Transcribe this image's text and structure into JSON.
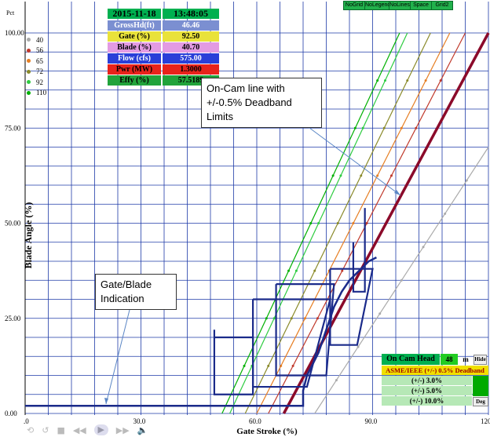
{
  "toolbar": {
    "buttons": [
      "NoGrid",
      "NoLegend",
      "NoLines",
      "Space",
      "Grid2"
    ]
  },
  "info": {
    "date": "2015-11-18",
    "time": "13:48:05",
    "rows": [
      {
        "label": "GrossHd(ft)",
        "value": "46.46",
        "label_bg": "#7b8fd1",
        "value_bg": "#7b8fd1",
        "color": "#fff"
      },
      {
        "label": "Gate (%)",
        "value": "92.50",
        "label_bg": "#e9e23a",
        "value_bg": "#e9e23a",
        "color": "#000"
      },
      {
        "label": "Blade (%)",
        "value": "40.70",
        "label_bg": "#e39be3",
        "value_bg": "#e39be3",
        "color": "#000"
      },
      {
        "label": "Flow (cfs)",
        "value": "575.00",
        "label_bg": "#2a3fd8",
        "value_bg": "#2a3fd8",
        "color": "#fff"
      },
      {
        "label": "Pwr (MW)",
        "value": "1.3000",
        "label_bg": "#e8231b",
        "value_bg": "#e8231b",
        "color": "#000"
      },
      {
        "label": "Effy (%)",
        "value": "57.5189",
        "label_bg": "#21a33b",
        "value_bg": "#21a33b",
        "color": "#000"
      }
    ]
  },
  "legend": [
    {
      "label": "40",
      "color": "#aaaaaa"
    },
    {
      "label": "56",
      "color": "#c0392b"
    },
    {
      "label": "65",
      "color": "#e67e22"
    },
    {
      "label": "72",
      "color": "#8a8a2a"
    },
    {
      "label": "92",
      "color": "#2ecc40"
    },
    {
      "label": "110",
      "color": "#00b000"
    }
  ],
  "callouts": {
    "oncam": [
      "On-Cam line with",
      "+/-0.5% Deadband",
      "Limits"
    ],
    "gate": [
      "Gate/Blade",
      "Indication"
    ]
  },
  "oncam_panel": {
    "title": "On Cam Head",
    "head": "48",
    "unit": "m",
    "hide": "Hide",
    "asme": "ASME/IEEE (+/-) 0.5% Deadband",
    "tolerances": [
      "(+/-) 3.0%",
      "(+/-) 5.0%",
      "(+/-) 10.0%"
    ],
    "deg": "Deg"
  },
  "player": {
    "icons": [
      "loop-icon",
      "repeat-icon",
      "stop-icon",
      "rewind-icon",
      "play-icon",
      "forward-icon",
      "volume-icon"
    ]
  },
  "chart_data": {
    "type": "line",
    "title": "",
    "xlabel": "Gate Stroke (%)",
    "ylabel": "Blade Angle (%)",
    "y_unit": "Pct",
    "xlim": [
      0,
      120
    ],
    "ylim": [
      0,
      100
    ],
    "x_ticks": [
      ".0",
      "30.0",
      "60.0",
      "90.0",
      "120"
    ],
    "y_ticks": [
      "0.00",
      "25.00",
      "50.00",
      "75.00",
      "100.00"
    ],
    "series": [
      {
        "name": "40",
        "color": "#aaaaaa",
        "x": [
          75,
          120
        ],
        "y": [
          0,
          70
        ]
      },
      {
        "name": "56",
        "color": "#c0392b",
        "x": [
          63,
          114
        ],
        "y": [
          0,
          100
        ]
      },
      {
        "name": "65",
        "color": "#e67e22",
        "x": [
          60,
          110
        ],
        "y": [
          0,
          100
        ]
      },
      {
        "name": "72",
        "color": "#8a8a2a",
        "x": [
          57,
          105
        ],
        "y": [
          0,
          100
        ]
      },
      {
        "name": "92",
        "color": "#2ecc40",
        "x": [
          53,
          99
        ],
        "y": [
          0,
          100
        ]
      },
      {
        "name": "110",
        "color": "#00b000",
        "x": [
          51,
          97
        ],
        "y": [
          0,
          100
        ]
      },
      {
        "name": "On Cam",
        "color": "#8b0a2a",
        "x": [
          67,
          120
        ],
        "y": [
          0,
          100
        ]
      }
    ],
    "trace": {
      "color": "#1a2a8a",
      "x": [
        0,
        30,
        60,
        72,
        72,
        73,
        76,
        78,
        80,
        82,
        84,
        86,
        89,
        91
      ],
      "y": [
        2,
        2,
        2,
        2,
        6,
        10,
        16,
        22,
        28,
        32,
        35,
        37,
        40,
        41
      ],
      "steps": [
        {
          "x": [
            49,
            49,
            57,
            59,
            59,
            49
          ],
          "y": [
            22,
            5,
            5,
            5,
            20,
            20
          ]
        },
        {
          "x": [
            59,
            59,
            73,
            79,
            79,
            59
          ],
          "y": [
            30,
            7,
            7,
            30,
            30,
            30
          ]
        },
        {
          "x": [
            65,
            65,
            78,
            80,
            80,
            65
          ],
          "y": [
            34,
            10,
            10,
            34,
            34,
            34
          ]
        },
        {
          "x": [
            79,
            79,
            86,
            90,
            90,
            79
          ],
          "y": [
            38,
            18,
            18,
            38,
            38,
            38
          ]
        },
        {
          "x": [
            85,
            85,
            88,
            88
          ],
          "y": [
            45,
            32,
            32,
            54
          ]
        }
      ]
    }
  }
}
